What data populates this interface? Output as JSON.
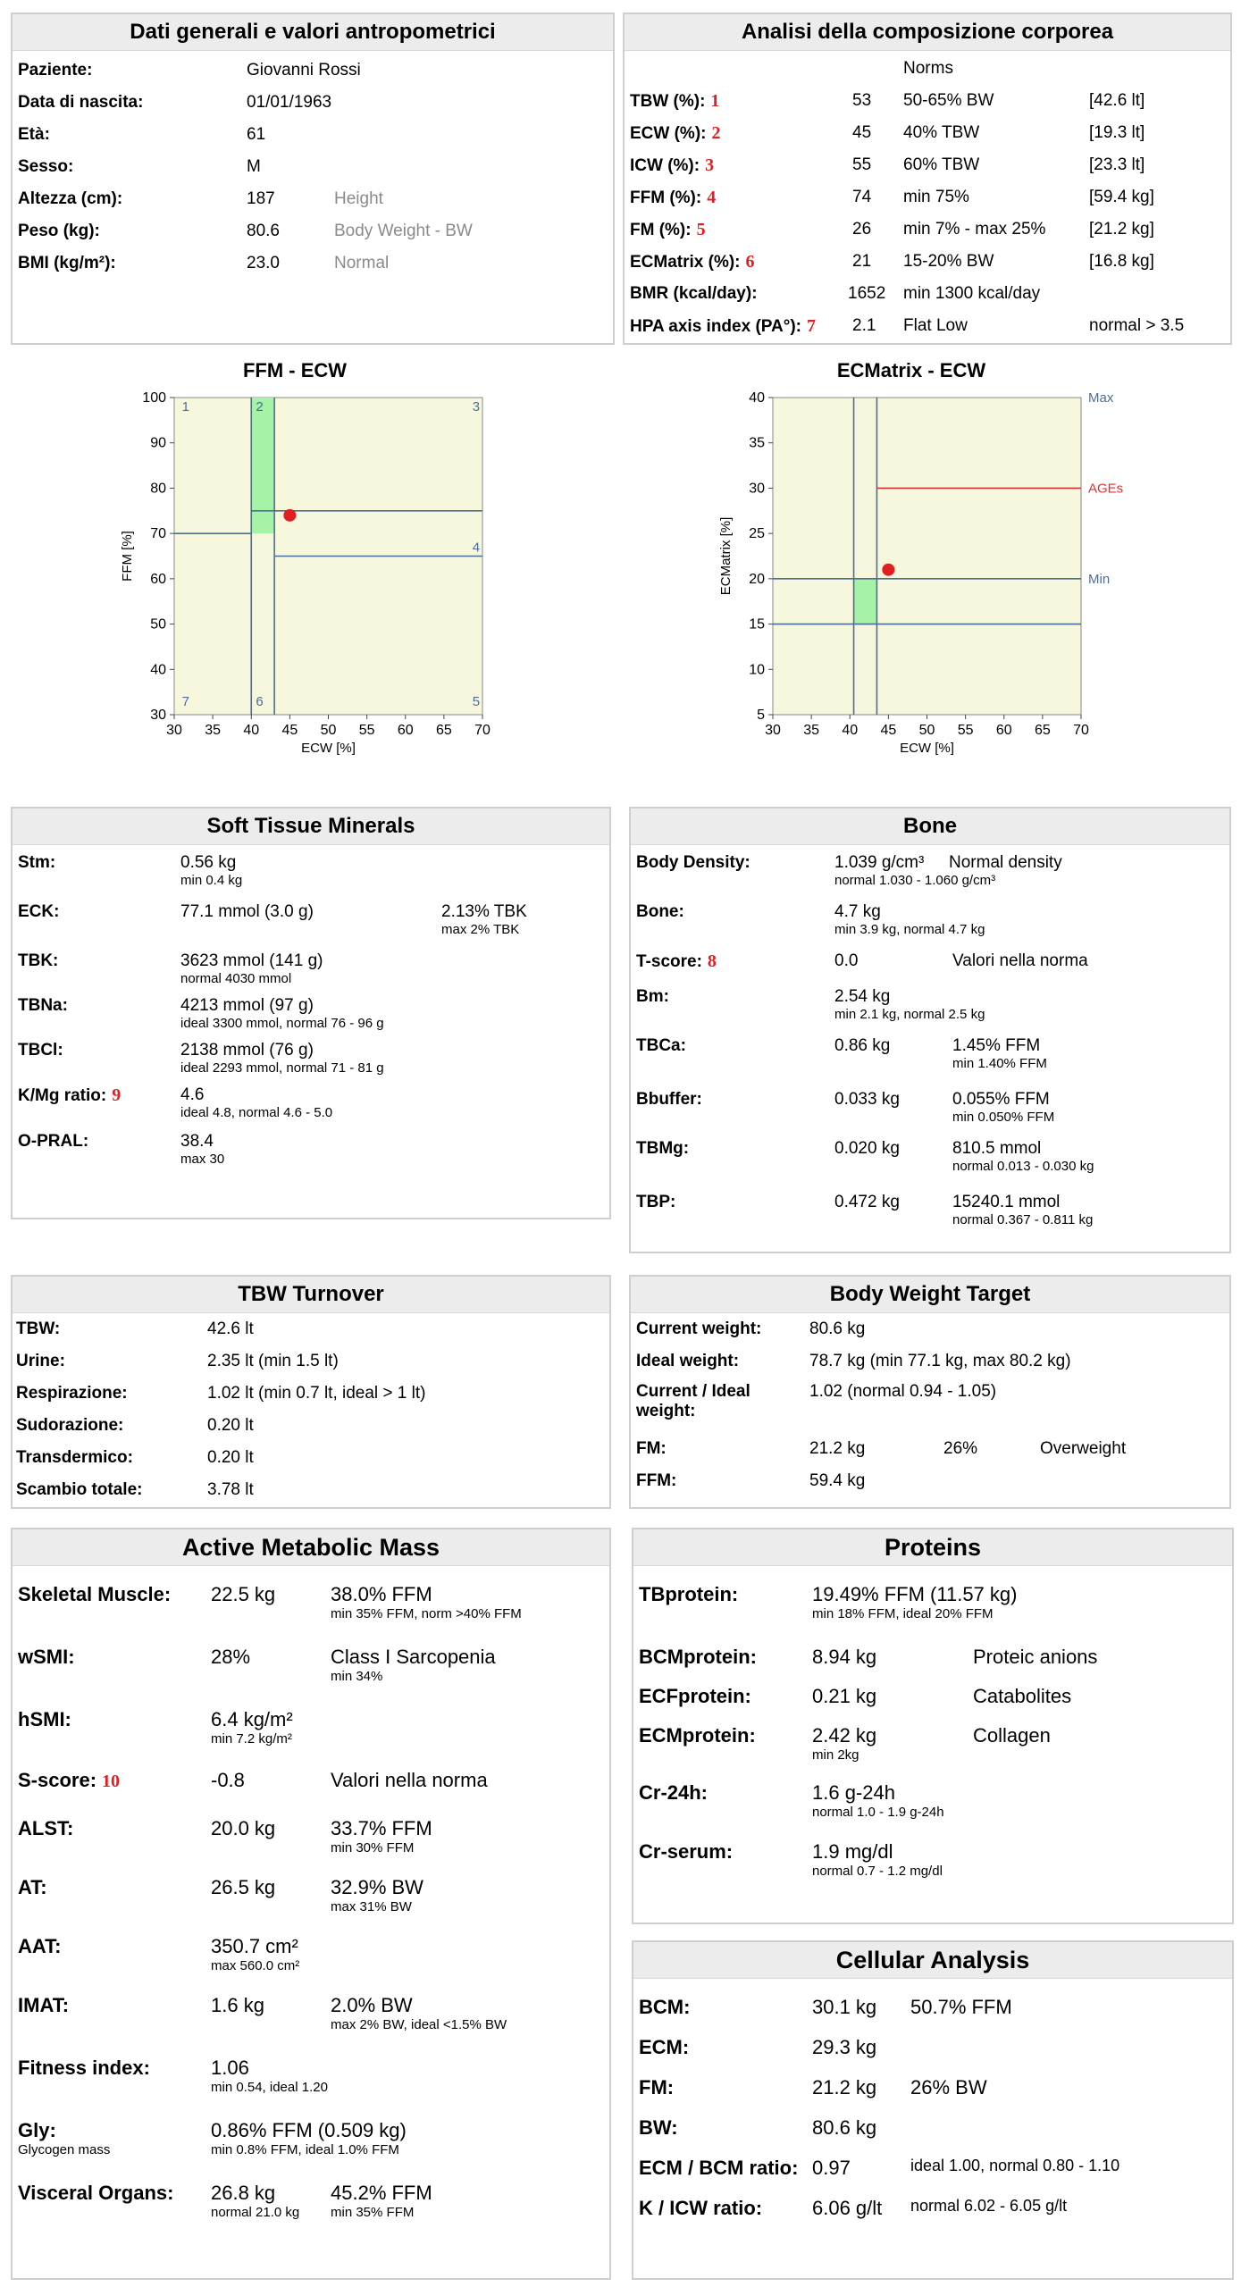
{
  "general": {
    "title": "Dati generali e valori antropometrici",
    "rows": [
      {
        "label": "Paziente:",
        "value": "Giovanni Rossi",
        "note": ""
      },
      {
        "label": "Data di nascita:",
        "value": "01/01/1963",
        "note": ""
      },
      {
        "label": "Età:",
        "value": "61",
        "note": ""
      },
      {
        "label": "Sesso:",
        "value": "M",
        "note": ""
      },
      {
        "label": "Altezza (cm):",
        "value": "187",
        "note": "Height"
      },
      {
        "label": "Peso (kg):",
        "value": "80.6",
        "note": "Body Weight - BW"
      },
      {
        "label": "BMI (kg/m²):",
        "value": "23.0",
        "note": "Normal"
      }
    ]
  },
  "composition": {
    "title": "Analisi della composizione corporea",
    "norms_header": "Norms",
    "rows": [
      {
        "label": "TBW (%):",
        "num": "1",
        "value": "53",
        "norm": "50-65% BW",
        "extra": "[42.6 lt]"
      },
      {
        "label": "ECW (%):",
        "num": "2",
        "value": "45",
        "norm": "40% TBW",
        "extra": "[19.3 lt]"
      },
      {
        "label": "ICW (%):",
        "num": "3",
        "value": "55",
        "norm": "60% TBW",
        "extra": "[23.3 lt]"
      },
      {
        "label": "FFM (%):",
        "num": "4",
        "value": "74",
        "norm": "min 75%",
        "extra": "[59.4 kg]"
      },
      {
        "label": "FM (%):",
        "num": "5",
        "value": "26",
        "norm": "min 7% - max 25%",
        "extra": "[21.2 kg]"
      },
      {
        "label": "ECMatrix (%):",
        "num": "6",
        "value": "21",
        "norm": "15-20% BW",
        "extra": "[16.8 kg]"
      },
      {
        "label": "BMR (kcal/day):",
        "num": "",
        "value": "1652",
        "norm": "min 1300 kcal/day",
        "extra": ""
      },
      {
        "label": "HPA axis index (PA°):",
        "num": "7",
        "value": "2.1",
        "norm": "Flat Low",
        "extra": "normal > 3.5"
      }
    ]
  },
  "chart_data": [
    {
      "type": "scatter",
      "title": "FFM - ECW",
      "xlabel": "ECW [%]",
      "ylabel": "FFM [%]",
      "xlim": [
        30,
        70
      ],
      "ylim": [
        30,
        100
      ],
      "xticks": [
        "30",
        "35",
        "40",
        "45",
        "50",
        "55",
        "60",
        "65",
        "70"
      ],
      "yticks": [
        "100",
        "90",
        "80",
        "70",
        "60",
        "50",
        "40",
        "30"
      ],
      "points": [
        {
          "x": 45,
          "y": 74
        }
      ],
      "zone_labels": [
        "1",
        "2",
        "3",
        "4",
        "5",
        "6",
        "7"
      ],
      "grid": true
    },
    {
      "type": "scatter",
      "title": "ECMatrix - ECW",
      "xlabel": "ECW [%]",
      "ylabel": "ECMatrix [%]",
      "xlim": [
        30,
        70
      ],
      "ylim": [
        5,
        40
      ],
      "xticks": [
        "30",
        "35",
        "40",
        "45",
        "50",
        "55",
        "60",
        "65",
        "70"
      ],
      "yticks": [
        "40",
        "35",
        "30",
        "25",
        "20",
        "15",
        "10",
        "5"
      ],
      "points": [
        {
          "x": 45,
          "y": 21
        }
      ],
      "ref_labels": [
        "Max",
        "AGEs",
        "Min"
      ],
      "grid": true
    }
  ],
  "minerals": {
    "title": "Soft Tissue Minerals",
    "rows": [
      {
        "label": "Stm:",
        "num": "",
        "value": "0.56 kg",
        "sub": "min 0.4 kg",
        "c3": "",
        "c3sub": ""
      },
      {
        "label": "ECK:",
        "num": "",
        "value": "77.1 mmol (3.0 g)",
        "sub": "",
        "c3": "2.13% TBK",
        "c3sub": "max 2% TBK"
      },
      {
        "label": "TBK:",
        "num": "",
        "value": "3623 mmol (141 g)",
        "sub": "normal 4030 mmol",
        "c3": "",
        "c3sub": ""
      },
      {
        "label": "TBNa:",
        "num": "",
        "value": "4213 mmol (97 g)",
        "sub": "ideal 3300 mmol, normal 76 - 96 g",
        "c3": "",
        "c3sub": ""
      },
      {
        "label": "TBCl:",
        "num": "",
        "value": "2138 mmol (76 g)",
        "sub": "ideal 2293 mmol, normal 71 - 81 g",
        "c3": "",
        "c3sub": ""
      },
      {
        "label": "K/Mg ratio:",
        "num": "9",
        "value": "4.6",
        "sub": "ideal 4.8, normal 4.6 - 5.0",
        "c3": "",
        "c3sub": ""
      },
      {
        "label": "O-PRAL:",
        "num": "",
        "value": "38.4",
        "sub": "max 30",
        "c3": "",
        "c3sub": ""
      }
    ]
  },
  "bone": {
    "title": "Bone",
    "rows": [
      {
        "label": "Body Density:",
        "num": "",
        "value": "1.039 g/cm³",
        "c3": "Normal density",
        "sub": "normal 1.030 - 1.060 g/cm³"
      },
      {
        "label": "Bone:",
        "num": "",
        "value": "4.7 kg",
        "c3": "",
        "sub": "min 3.9 kg, normal 4.7 kg"
      },
      {
        "label": "T-score:",
        "num": "8",
        "value": "0.0",
        "c3": "Valori nella norma",
        "sub": ""
      },
      {
        "label": "Bm:",
        "num": "",
        "value": "2.54 kg",
        "c3": "",
        "sub": "min 2.1 kg, normal 2.5 kg"
      },
      {
        "label": "TBCa:",
        "num": "",
        "value": "0.86 kg",
        "c3": "1.45% FFM",
        "sub": "min 1.40% FFM"
      },
      {
        "label": "Bbuffer:",
        "num": "",
        "value": "0.033 kg",
        "c3": "0.055% FFM",
        "sub": "min 0.050% FFM"
      },
      {
        "label": "TBMg:",
        "num": "",
        "value": "0.020 kg",
        "c3": "810.5 mmol",
        "sub": "normal 0.013 - 0.030 kg"
      },
      {
        "label": "TBP:",
        "num": "",
        "value": "0.472 kg",
        "c3": "15240.1 mmol",
        "sub": "normal 0.367 - 0.811 kg"
      }
    ]
  },
  "turnover": {
    "title": "TBW Turnover",
    "rows": [
      {
        "label": "TBW:",
        "value": "42.6 lt"
      },
      {
        "label": "Urine:",
        "value": "2.35 lt (min 1.5 lt)"
      },
      {
        "label": "Respirazione:",
        "value": "1.02 lt (min 0.7 lt, ideal > 1 lt)"
      },
      {
        "label": "Sudorazione:",
        "value": "0.20 lt"
      },
      {
        "label": "Transdermico:",
        "value": "0.20 lt"
      },
      {
        "label": "Scambio totale:",
        "value": "3.78 lt"
      }
    ]
  },
  "target": {
    "title": "Body Weight Target",
    "rows": [
      {
        "label": "Current weight:",
        "value": "80.6 kg",
        "c3": "",
        "c4": ""
      },
      {
        "label": "Ideal weight:",
        "value": "78.7 kg (min 77.1 kg, max 80.2 kg)",
        "c3": "",
        "c4": ""
      },
      {
        "label": "Current / Ideal weight:",
        "value": "1.02 (normal 0.94 - 1.05)",
        "c3": "",
        "c4": ""
      },
      {
        "label": "FM:",
        "value": "21.2 kg",
        "c3": "26%",
        "c4": "Overweight"
      },
      {
        "label": "FFM:",
        "value": "59.4 kg",
        "c3": "",
        "c4": ""
      }
    ]
  },
  "metabolic": {
    "title": "Active Metabolic Mass",
    "rows": [
      {
        "label": "Skeletal Muscle:",
        "lsub": "",
        "num": "",
        "value": "22.5 kg",
        "vsub": "",
        "c3": "38.0% FFM",
        "c3sub": "min 35% FFM, norm >40% FFM"
      },
      {
        "label": "wSMI:",
        "lsub": "",
        "num": "",
        "value": "28%",
        "vsub": "",
        "c3": "Class I Sarcopenia",
        "c3sub": "min 34%"
      },
      {
        "label": "hSMI:",
        "lsub": "",
        "num": "",
        "value": "6.4 kg/m²",
        "vsub": "min 7.2 kg/m²",
        "c3": "",
        "c3sub": ""
      },
      {
        "label": "S-score:",
        "lsub": "",
        "num": "10",
        "value": "-0.8",
        "vsub": "",
        "c3": "Valori nella norma",
        "c3sub": ""
      },
      {
        "label": "ALST:",
        "lsub": "",
        "num": "",
        "value": "20.0 kg",
        "vsub": "",
        "c3": "33.7% FFM",
        "c3sub": "min 30% FFM"
      },
      {
        "label": "AT:",
        "lsub": "",
        "num": "",
        "value": "26.5 kg",
        "vsub": "",
        "c3": "32.9% BW",
        "c3sub": "max 31% BW"
      },
      {
        "label": "AAT:",
        "lsub": "",
        "num": "",
        "value": "350.7 cm²",
        "vsub": "max 560.0 cm²",
        "c3": "",
        "c3sub": ""
      },
      {
        "label": "IMAT:",
        "lsub": "",
        "num": "",
        "value": "1.6 kg",
        "vsub": "",
        "c3": "2.0% BW",
        "c3sub": "max 2% BW, ideal <1.5% BW"
      },
      {
        "label": "Fitness index:",
        "lsub": "",
        "num": "",
        "value": "1.06",
        "vsub": "min 0.54, ideal 1.20",
        "c3": "",
        "c3sub": ""
      },
      {
        "label": "Gly:",
        "lsub": "Glycogen mass",
        "num": "",
        "value": "0.86% FFM (0.509 kg)",
        "vsub": "min 0.8% FFM, ideal 1.0% FFM",
        "c3": "",
        "c3sub": ""
      },
      {
        "label": "Visceral Organs:",
        "lsub": "",
        "num": "",
        "value": "26.8 kg",
        "vsub": "normal 21.0 kg",
        "c3": "45.2% FFM",
        "c3sub": "min 35% FFM"
      }
    ]
  },
  "proteins": {
    "title": "Proteins",
    "rows": [
      {
        "label": "TBprotein:",
        "value": "19.49% FFM (11.57 kg)",
        "vsub": "min 18% FFM, ideal 20% FFM",
        "c3": ""
      },
      {
        "label": "BCMprotein:",
        "value": "8.94 kg",
        "vsub": "",
        "c3": "Proteic anions"
      },
      {
        "label": "ECFprotein:",
        "value": "0.21 kg",
        "vsub": "",
        "c3": "Catabolites"
      },
      {
        "label": "ECMprotein:",
        "value": "2.42 kg",
        "vsub": "min 2kg",
        "c3": "Collagen"
      },
      {
        "label": "Cr-24h:",
        "value": "1.6 g-24h",
        "vsub": "normal 1.0 - 1.9 g-24h",
        "c3": ""
      },
      {
        "label": "Cr-serum:",
        "value": "1.9 mg/dl",
        "vsub": "normal 0.7 - 1.2 mg/dl",
        "c3": ""
      }
    ]
  },
  "cellular": {
    "title": "Cellular Analysis",
    "rows": [
      {
        "label": "BCM:",
        "value": "30.1 kg",
        "c3": "50.7% FFM"
      },
      {
        "label": "ECM:",
        "value": "29.3 kg",
        "c3": ""
      },
      {
        "label": "FM:",
        "value": "21.2 kg",
        "c3": "26% BW"
      },
      {
        "label": "BW:",
        "value": "80.6 kg",
        "c3": ""
      },
      {
        "label": "ECM / BCM ratio:",
        "value": "0.97",
        "c3": "ideal 1.00, normal 0.80 - 1.10"
      },
      {
        "label": "K / ICW ratio:",
        "value": "6.06 g/lt",
        "c3": "normal 6.02 - 6.05 g/lt"
      }
    ]
  }
}
